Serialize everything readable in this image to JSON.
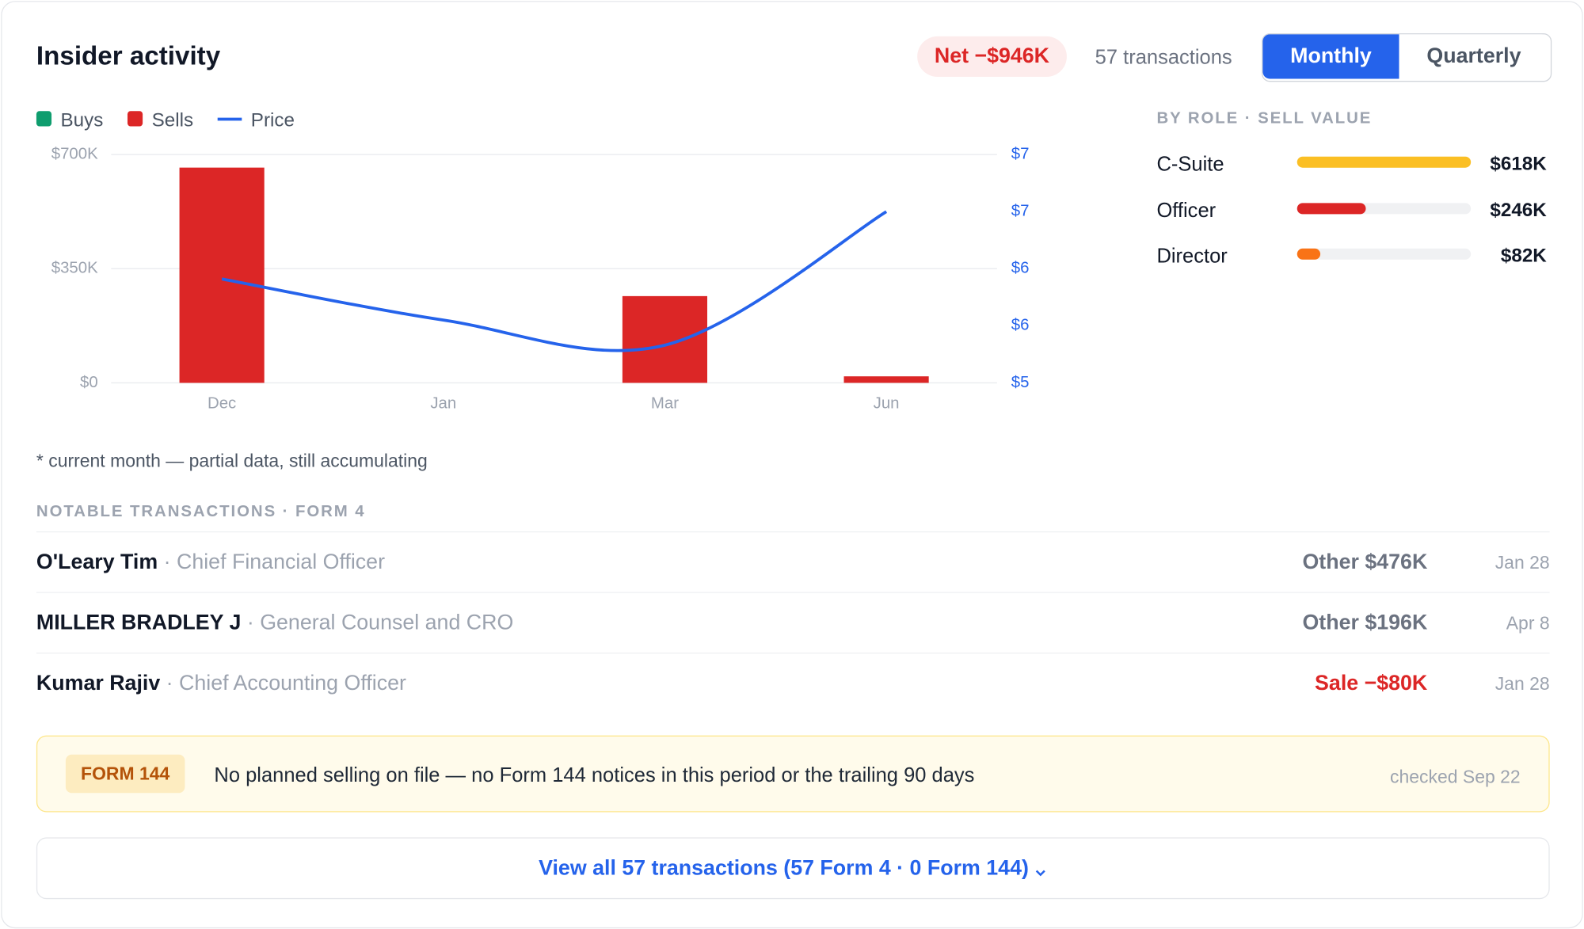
{
  "header": {
    "title": "Insider activity",
    "net_badge": "Net −$946K",
    "transactions": "57 transactions",
    "tabs": [
      "Monthly",
      "Quarterly"
    ],
    "selected_tab": 0
  },
  "chart_data": {
    "type": "bar-line",
    "categories": [
      "Dec",
      "Jan",
      "Mar",
      "Jun"
    ],
    "series": [
      {
        "name": "Buys",
        "type": "bar",
        "color": "#0f9d6e",
        "values": [
          0,
          0,
          0,
          0
        ]
      },
      {
        "name": "Sells",
        "type": "bar",
        "color": "#dc2626",
        "values": [
          660000,
          0,
          266000,
          20000
        ]
      },
      {
        "name": "Price",
        "type": "line",
        "axis": "y2",
        "color": "#2563eb",
        "values": [
          5.91,
          5.55,
          5.33,
          6.5
        ]
      }
    ],
    "ylim": [
      0,
      700000
    ],
    "yticks": [
      {
        "value": 0,
        "label": "$0"
      },
      {
        "value": 350000,
        "label": "$350K"
      },
      {
        "value": 700000,
        "label": "$700K"
      }
    ],
    "y2lim": [
      5,
      7
    ],
    "y2ticks": [
      {
        "value": 5,
        "label": "$5"
      },
      {
        "value": 5.5,
        "label": "$6"
      },
      {
        "value": 6,
        "label": "$6"
      },
      {
        "value": 6.5,
        "label": "$7"
      },
      {
        "value": 7,
        "label": "$7"
      }
    ],
    "grid": true
  },
  "footnote": "* current month — partial data, still accumulating",
  "by_role": {
    "title": "BY ROLE · SELL VALUE",
    "rows": [
      {
        "role": "C-Suite",
        "value": 618000,
        "value_label": "$618K",
        "color": "#fbbf24"
      },
      {
        "role": "Officer",
        "value": 246000,
        "value_label": "$246K",
        "color": "#dc2626"
      },
      {
        "role": "Director",
        "value": 82000,
        "value_label": "$82K",
        "color": "#f97316"
      }
    ]
  },
  "notable": {
    "title": "NOTABLE TRANSACTIONS · FORM 4",
    "rows": [
      {
        "name": "O'Leary Tim",
        "role": "· Chief Financial Officer",
        "amount": "Other $476K",
        "date": "Jan 28",
        "color": "#6b7280"
      },
      {
        "name": "MILLER BRADLEY J",
        "role": "· General Counsel and CRO",
        "amount": "Other $196K",
        "date": "Apr 8",
        "color": "#6b7280"
      },
      {
        "name": "Kumar Rajiv",
        "role": "· Chief Accounting Officer",
        "amount": "Sale −$80K",
        "date": "Jan 28",
        "color": "#dc2626"
      }
    ]
  },
  "form144": {
    "badge": "FORM 144",
    "text": "No planned selling on file — no Form 144 notices in this period or the trailing 90 days",
    "checked": "checked Sep 22"
  },
  "footer_link": "View all 57 transactions (57 Form 4 · 0 Form 144)"
}
